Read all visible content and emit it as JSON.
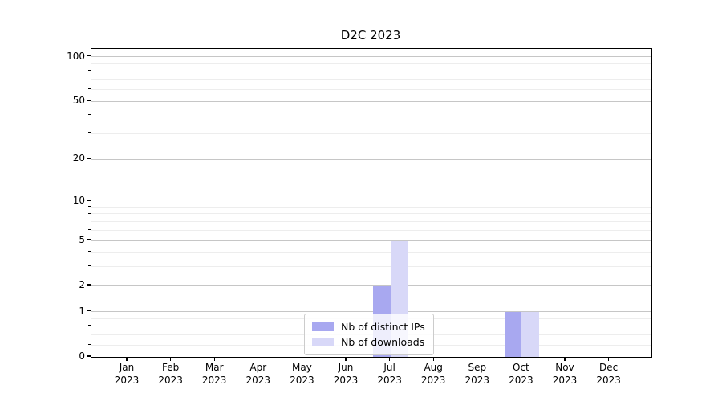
{
  "chart_data": {
    "type": "bar",
    "title": "D2C 2023",
    "x_months": [
      "Jan",
      "Feb",
      "Mar",
      "Apr",
      "May",
      "Jun",
      "Jul",
      "Aug",
      "Sep",
      "Oct",
      "Nov",
      "Dec"
    ],
    "x_year": "2023",
    "series": [
      {
        "name": "Nb of distinct IPs",
        "color": "#a8a8f0",
        "values": [
          0,
          0,
          0,
          0,
          0,
          0,
          2,
          0,
          0,
          1,
          0,
          0
        ]
      },
      {
        "name": "Nb of downloads",
        "color": "#d8d8f8",
        "values": [
          0,
          0,
          0,
          0,
          0,
          0,
          5,
          0,
          0,
          1,
          0,
          0
        ]
      }
    ],
    "y_scale": "log1p",
    "ylim": [
      0,
      113
    ],
    "yticks": [
      0,
      1,
      2,
      5,
      10,
      20,
      50,
      100
    ],
    "y_minor_gridlines": [
      0.2,
      0.4,
      0.6,
      0.8,
      3,
      4,
      6,
      7,
      8,
      9,
      30,
      40,
      60,
      70,
      80,
      90
    ],
    "grid": "horizontal",
    "legend_position": "lower-center",
    "colors": {
      "major_grid": "#c6c6c6",
      "minor_grid": "#ededed",
      "axis": "#000000",
      "background": "#ffffff"
    }
  }
}
